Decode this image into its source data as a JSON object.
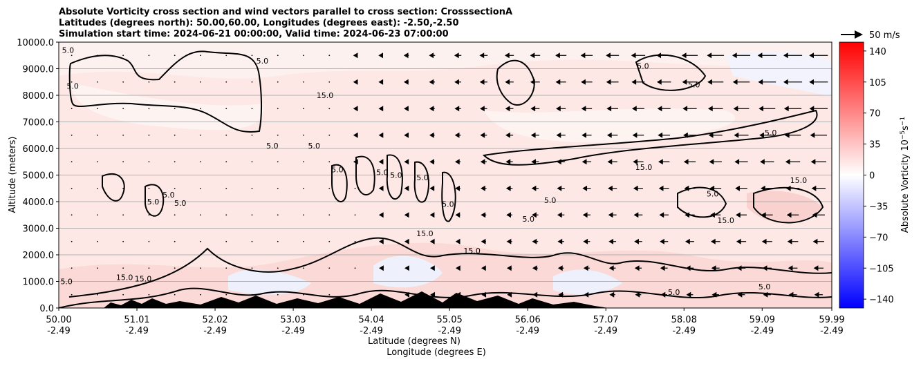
{
  "chart_data": {
    "type": "heatmap",
    "title_lines": [
      "Absolute Vorticity cross section and wind vectors parallel to cross section: CrosssectionA",
      "Latitudes (degrees north): 50.00,60.00, Longitudes (degrees east): -2.50,-2.50",
      "Simulation start time: 2024-06-21 00:00:00, Valid time: 2024-06-23 07:00:00"
    ],
    "ylabel": "Altitude (meters)",
    "xlabel_lines": [
      "Latitude (degrees N)",
      "Longitude (degrees E)"
    ],
    "ylim": [
      0,
      10000
    ],
    "xlim": [
      50.0,
      59.99
    ],
    "y_ticks": [
      {
        "value": 0,
        "label": "0.0"
      },
      {
        "value": 1000,
        "label": "1000.0"
      },
      {
        "value": 2000,
        "label": "2000.0"
      },
      {
        "value": 3000,
        "label": "3000.0"
      },
      {
        "value": 4000,
        "label": "4000.0"
      },
      {
        "value": 5000,
        "label": "5000.0"
      },
      {
        "value": 6000,
        "label": "6000.0"
      },
      {
        "value": 7000,
        "label": "7000.0"
      },
      {
        "value": 8000,
        "label": "8000.0"
      },
      {
        "value": 9000,
        "label": "9000.0"
      },
      {
        "value": 10000,
        "label": "10000.0"
      }
    ],
    "x_ticks": [
      {
        "value": 50.0,
        "lat": "50.00",
        "lon": "-2.49"
      },
      {
        "value": 51.01,
        "lat": "51.01",
        "lon": "-2.49"
      },
      {
        "value": 52.02,
        "lat": "52.02",
        "lon": "-2.49"
      },
      {
        "value": 53.03,
        "lat": "53.03",
        "lon": "-2.49"
      },
      {
        "value": 54.04,
        "lat": "54.04",
        "lon": "-2.49"
      },
      {
        "value": 55.05,
        "lat": "55.05",
        "lon": "-2.49"
      },
      {
        "value": 56.06,
        "lat": "56.06",
        "lon": "-2.49"
      },
      {
        "value": 57.07,
        "lat": "57.07",
        "lon": "-2.49"
      },
      {
        "value": 58.08,
        "lat": "58.08",
        "lon": "-2.49"
      },
      {
        "value": 59.09,
        "lat": "59.09",
        "lon": "-2.49"
      },
      {
        "value": 59.99,
        "lat": "59.99",
        "lon": "-2.49"
      }
    ],
    "grid": "horizontal",
    "colorbar": {
      "label": "Absolute Vorticity 10",
      "label_exponent": "−5",
      "label_unit": "s",
      "label_unit_exponent": "−1",
      "range": [
        -150,
        150
      ],
      "ticks": [
        {
          "value": 140,
          "label": "140"
        },
        {
          "value": 105,
          "label": "105"
        },
        {
          "value": 70,
          "label": "70"
        },
        {
          "value": 35,
          "label": "35"
        },
        {
          "value": 0,
          "label": "0"
        },
        {
          "value": -35,
          "label": "−35"
        },
        {
          "value": -70,
          "label": "−70"
        },
        {
          "value": -105,
          "label": "−105"
        },
        {
          "value": -140,
          "label": "−140"
        }
      ],
      "colors": {
        "low": "#0000ff",
        "mid": "#ffffff",
        "high": "#ff0000"
      }
    },
    "quiver_key": {
      "label": "50 m/s",
      "value": 50
    },
    "contour_levels": [
      5.0,
      15.0
    ],
    "contour_labels": [
      {
        "text": "5.0",
        "lat": 50.12,
        "alt": 9600
      },
      {
        "text": "5.0",
        "lat": 50.18,
        "alt": 8250
      },
      {
        "text": "5.0",
        "lat": 51.22,
        "alt": 3900
      },
      {
        "text": "5.0",
        "lat": 51.42,
        "alt": 4150
      },
      {
        "text": "5.0",
        "lat": 51.57,
        "alt": 3850
      },
      {
        "text": "5.0",
        "lat": 52.63,
        "alt": 9200
      },
      {
        "text": "5.0",
        "lat": 52.76,
        "alt": 6000
      },
      {
        "text": "5.0",
        "lat": 53.3,
        "alt": 6000
      },
      {
        "text": "5.0",
        "lat": 53.6,
        "alt": 5100
      },
      {
        "text": "5.0",
        "lat": 54.18,
        "alt": 5000
      },
      {
        "text": "5.0",
        "lat": 54.36,
        "alt": 4900
      },
      {
        "text": "5.0",
        "lat": 54.7,
        "alt": 4800
      },
      {
        "text": "5.0",
        "lat": 55.03,
        "alt": 3800
      },
      {
        "text": "5.0",
        "lat": 56.07,
        "alt": 3250
      },
      {
        "text": "5.0",
        "lat": 56.35,
        "alt": 3950
      },
      {
        "text": "5.0",
        "lat": 57.55,
        "alt": 9000
      },
      {
        "text": "5.0",
        "lat": 58.21,
        "alt": 8300
      },
      {
        "text": "5.0",
        "lat": 58.45,
        "alt": 4200
      },
      {
        "text": "5.0",
        "lat": 59.2,
        "alt": 6500
      },
      {
        "text": "15.0",
        "lat": 54.73,
        "alt": 2700
      },
      {
        "text": "15.0",
        "lat": 55.34,
        "alt": 2050
      },
      {
        "text": "15.0",
        "lat": 53.44,
        "alt": 7900
      },
      {
        "text": "15.0",
        "lat": 57.56,
        "alt": 5200
      },
      {
        "text": "15.0",
        "lat": 58.62,
        "alt": 3200
      },
      {
        "text": "15.0",
        "lat": 59.56,
        "alt": 4700
      },
      {
        "text": "5.0",
        "lat": 50.1,
        "alt": 900
      },
      {
        "text": "15.0",
        "lat": 50.85,
        "alt": 1050
      },
      {
        "text": "15.0",
        "lat": 51.09,
        "alt": 1000
      },
      {
        "text": "5.0",
        "lat": 57.95,
        "alt": 500
      },
      {
        "text": "5.0",
        "lat": 59.12,
        "alt": 700
      }
    ]
  }
}
